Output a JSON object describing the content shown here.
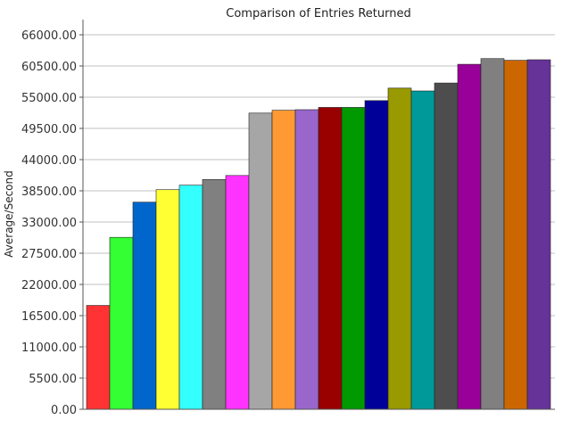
{
  "chart_data": {
    "type": "bar",
    "title": "Comparison of Entries Returned",
    "xlabel": "",
    "ylabel": "Average/Second",
    "ylim": [
      0,
      66000
    ],
    "yticks": [
      0,
      5500,
      11000,
      16500,
      22000,
      27500,
      33000,
      38500,
      44000,
      49500,
      55000,
      60500,
      66000
    ],
    "ytick_labels": [
      "0.00",
      "5500.00",
      "11000.00",
      "16500.00",
      "22000.00",
      "27500.00",
      "33000.00",
      "38500.00",
      "44000.00",
      "49500.00",
      "55000.00",
      "60500.00",
      "66000.00"
    ],
    "grid": true,
    "legend": "none",
    "values": [
      18300,
      30300,
      36500,
      38700,
      39500,
      40500,
      41200,
      52200,
      52700,
      52800,
      53200,
      53200,
      54400,
      56600,
      56100,
      57500,
      60800,
      61800,
      61500,
      61600
    ],
    "colors": [
      "#ff3333",
      "#33ff33",
      "#0066cc",
      "#ffff33",
      "#33ffff",
      "#808080",
      "#ff33ff",
      "#a6a6a6",
      "#ff9933",
      "#9966cc",
      "#990000",
      "#009900",
      "#000099",
      "#999900",
      "#009999",
      "#4d4d4d",
      "#990099",
      "#808080",
      "#cc6600",
      "#663399"
    ]
  }
}
